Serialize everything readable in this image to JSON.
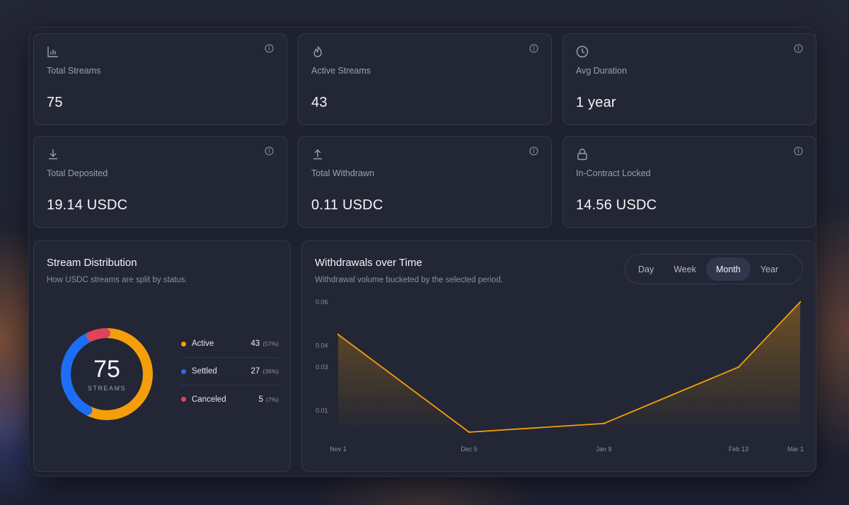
{
  "stats": [
    {
      "label": "Total Streams",
      "value": "75",
      "icon": "bar-chart-icon"
    },
    {
      "label": "Active Streams",
      "value": "43",
      "icon": "flame-icon"
    },
    {
      "label": "Avg Duration",
      "value": "1 year",
      "icon": "clock-icon"
    },
    {
      "label": "Total Deposited",
      "value": "19.14 USDC",
      "icon": "download-icon"
    },
    {
      "label": "Total Withdrawn",
      "value": "0.11 USDC",
      "icon": "upload-icon"
    },
    {
      "label": "In-Contract Locked",
      "value": "14.56 USDC",
      "icon": "lock-icon"
    }
  ],
  "distribution": {
    "title": "Stream Distribution",
    "subtitle": "How USDC streams are split by status.",
    "total": "75",
    "total_label": "STREAMS",
    "items": [
      {
        "name": "Active",
        "count": "43",
        "pct": "(57%)",
        "value": 43,
        "color": "#f59e0b"
      },
      {
        "name": "Settled",
        "count": "27",
        "pct": "(36%)",
        "value": 27,
        "color": "#1d6ef5"
      },
      {
        "name": "Canceled",
        "count": "5",
        "pct": "(7%)",
        "value": 5,
        "color": "#e0445a"
      }
    ]
  },
  "withdrawals": {
    "title": "Withdrawals over Time",
    "subtitle": "Withdrawal volume bucketed by the selected period.",
    "periods": [
      "Day",
      "Week",
      "Month",
      "Year"
    ],
    "selected_period": "Month"
  },
  "colors": {
    "accent": "#f59e0b",
    "active": "#f59e0b",
    "settled": "#1d6ef5",
    "canceled": "#e0445a"
  },
  "chart_data": {
    "type": "area",
    "title": "Withdrawals over Time",
    "x": [
      "Nov 1",
      "Dec 5",
      "Jan 9",
      "Feb 13",
      "Mar 1"
    ],
    "x_numeric": [
      0,
      34,
      69,
      104,
      120
    ],
    "values": [
      0.045,
      0.0,
      0.004,
      0.03,
      0.06
    ],
    "yticks": [
      0.01,
      0.03,
      0.04,
      0.06
    ],
    "ylim": [
      0,
      0.06
    ],
    "xlabel": "",
    "ylabel": "",
    "grid": false
  }
}
